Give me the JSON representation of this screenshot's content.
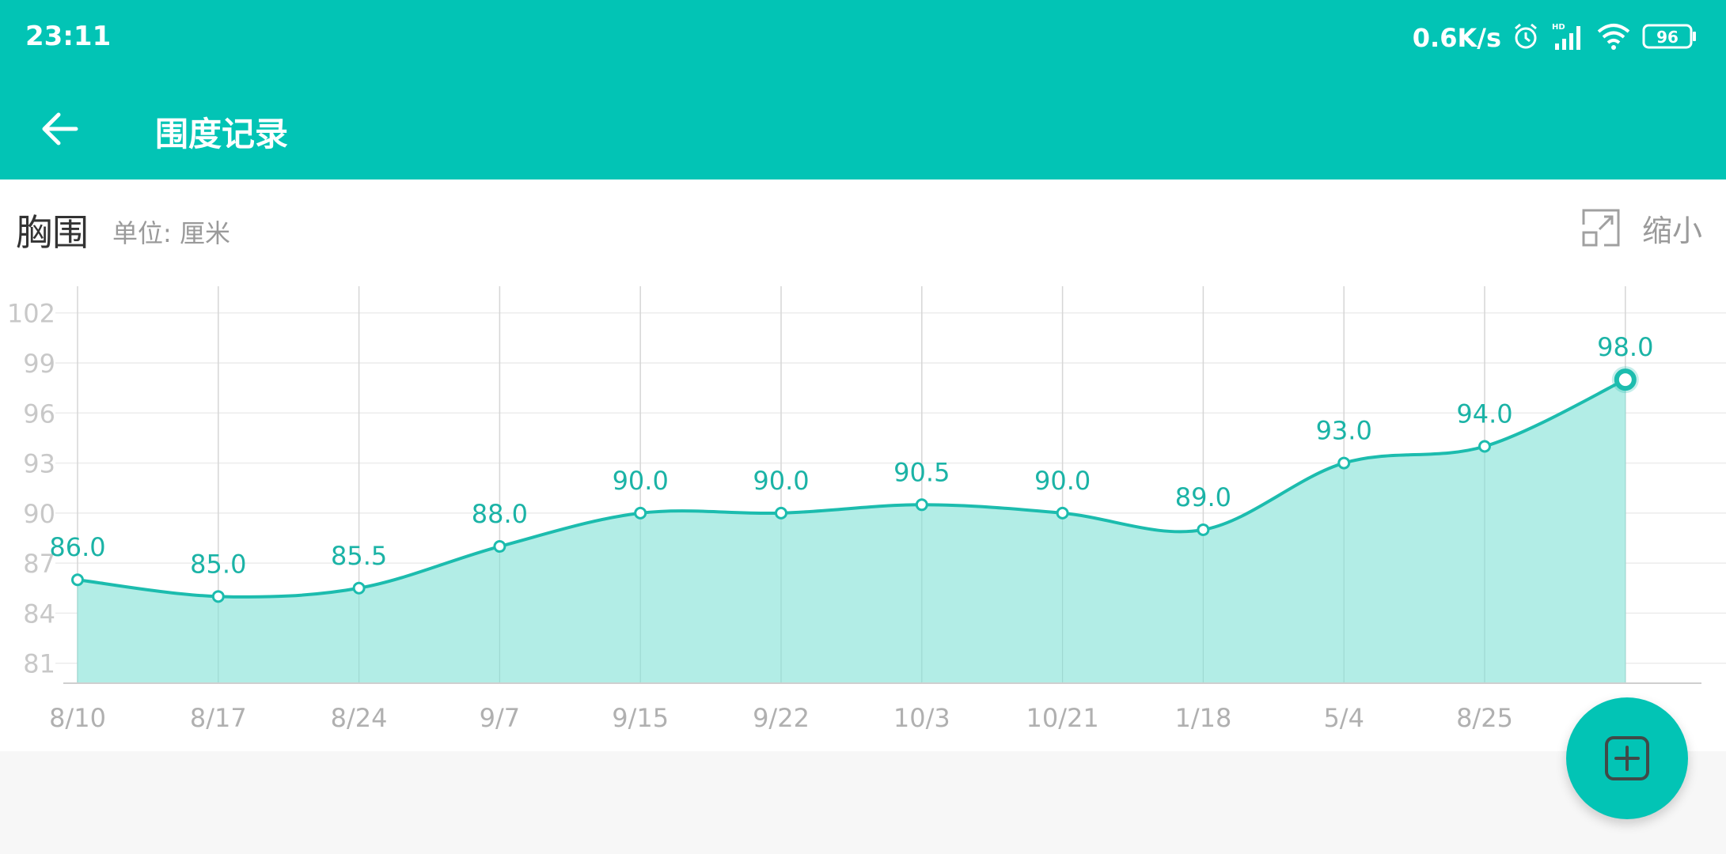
{
  "status_bar": {
    "time": "23:11",
    "net_speed": "0.6K/s",
    "battery": "96",
    "icons": [
      "alarm-icon",
      "hd-signal-icon",
      "wifi-icon",
      "battery-icon"
    ]
  },
  "header": {
    "title": "围度记录",
    "back_icon": "arrow-left-icon"
  },
  "chart_header": {
    "title": "胸围",
    "unit": "单位: 厘米",
    "shrink_label": "缩小",
    "shrink_icon": "collapse-icon"
  },
  "fab": {
    "icon": "add-square-icon"
  },
  "colors": {
    "primary": "#02c4b5",
    "line": "#1cbcae",
    "area": "#b2ede6",
    "value_label": "#1bb3a6",
    "axis_text": "#b0b0b0"
  },
  "chart_data": {
    "type": "area",
    "categories": [
      "8/10",
      "8/17",
      "8/24",
      "9/7",
      "9/15",
      "9/22",
      "10/3",
      "10/21",
      "1/18",
      "5/4",
      "8/25",
      ""
    ],
    "values": [
      86.0,
      85.0,
      85.5,
      88.0,
      90.0,
      90.0,
      90.5,
      90.0,
      89.0,
      93.0,
      94.0,
      98.0
    ],
    "value_labels": [
      "86.0",
      "85.0",
      "85.5",
      "88.0",
      "90.0",
      "90.0",
      "90.5",
      "90.0",
      "89.0",
      "93.0",
      "94.0",
      "98.0"
    ],
    "y_ticks": [
      81,
      84,
      87,
      90,
      93,
      96,
      99,
      102
    ],
    "ylim": [
      79.8,
      103.6
    ],
    "grid": true,
    "highlight_index": 11
  }
}
